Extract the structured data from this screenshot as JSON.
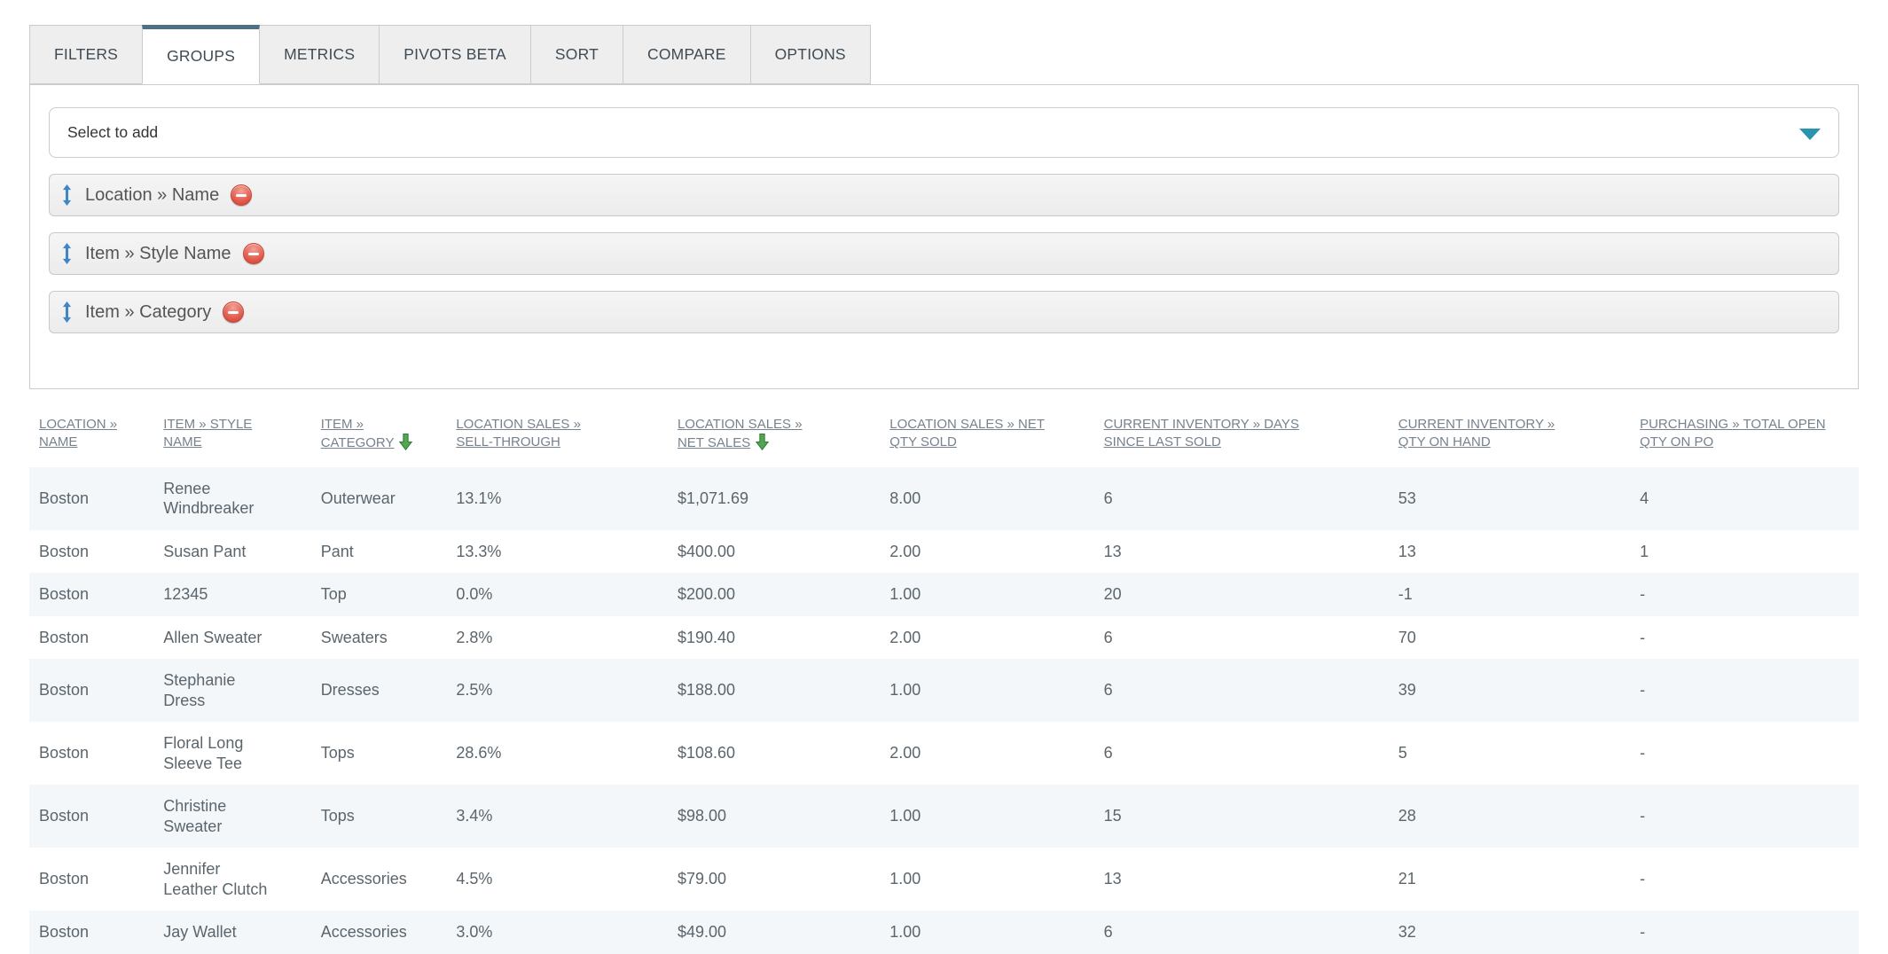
{
  "tabs": {
    "items": [
      {
        "label": "FILTERS",
        "active": false
      },
      {
        "label": "GROUPS",
        "active": true
      },
      {
        "label": "METRICS",
        "active": false
      },
      {
        "label": "PIVOTS BETA",
        "active": false
      },
      {
        "label": "SORT",
        "active": false
      },
      {
        "label": "COMPARE",
        "active": false
      },
      {
        "label": "OPTIONS",
        "active": false
      }
    ]
  },
  "groups_panel": {
    "select_placeholder": "Select to add",
    "groups": [
      {
        "label": "Location » Name"
      },
      {
        "label": "Item » Style Name"
      },
      {
        "label": "Item » Category"
      }
    ]
  },
  "table": {
    "columns": [
      {
        "label": "LOCATION » NAME",
        "lines": [
          "LOCATION »",
          "NAME"
        ],
        "sorted": false
      },
      {
        "label": "ITEM » STYLE NAME",
        "lines": [
          "ITEM » STYLE",
          "NAME"
        ],
        "sorted": false
      },
      {
        "label": "ITEM » CATEGORY",
        "lines": [
          "ITEM »",
          "CATEGORY"
        ],
        "sorted": true
      },
      {
        "label": "LOCATION SALES » SELL-THROUGH",
        "lines": [
          "LOCATION SALES »",
          "SELL-THROUGH"
        ],
        "sorted": false
      },
      {
        "label": "LOCATION SALES » NET SALES",
        "lines": [
          "LOCATION SALES »",
          "NET SALES"
        ],
        "sorted": true
      },
      {
        "label": "LOCATION SALES » NET QTY SOLD",
        "lines": [
          "LOCATION SALES » NET",
          "QTY SOLD"
        ],
        "sorted": false
      },
      {
        "label": "CURRENT INVENTORY » DAYS SINCE LAST SOLD",
        "lines": [
          "CURRENT INVENTORY » DAYS",
          "SINCE LAST SOLD"
        ],
        "sorted": false
      },
      {
        "label": "CURRENT INVENTORY » QTY ON HAND",
        "lines": [
          "CURRENT INVENTORY »",
          "QTY ON HAND"
        ],
        "sorted": false
      },
      {
        "label": "PURCHASING » TOTAL OPEN QTY ON PO",
        "lines": [
          "PURCHASING » TOTAL OPEN",
          "QTY ON PO"
        ],
        "sorted": false
      }
    ],
    "rows": [
      [
        "Boston",
        "Renee Windbreaker",
        "Outerwear",
        "13.1%",
        "$1,071.69",
        "8.00",
        "6",
        "53",
        "4"
      ],
      [
        "Boston",
        "Susan Pant",
        "Pant",
        "13.3%",
        "$400.00",
        "2.00",
        "13",
        "13",
        "1"
      ],
      [
        "Boston",
        "12345",
        "Top",
        "0.0%",
        "$200.00",
        "1.00",
        "20",
        "-1",
        "-"
      ],
      [
        "Boston",
        "Allen Sweater",
        "Sweaters",
        "2.8%",
        "$190.40",
        "2.00",
        "6",
        "70",
        "-"
      ],
      [
        "Boston",
        "Stephanie Dress",
        "Dresses",
        "2.5%",
        "$188.00",
        "1.00",
        "6",
        "39",
        "-"
      ],
      [
        "Boston",
        "Floral Long Sleeve Tee",
        "Tops",
        "28.6%",
        "$108.60",
        "2.00",
        "6",
        "5",
        "-"
      ],
      [
        "Boston",
        "Christine Sweater",
        "Tops",
        "3.4%",
        "$98.00",
        "1.00",
        "15",
        "28",
        "-"
      ],
      [
        "Boston",
        "Jennifer Leather Clutch",
        "Accessories",
        "4.5%",
        "$79.00",
        "1.00",
        "13",
        "21",
        "-"
      ],
      [
        "Boston",
        "Jay Wallet",
        "Accessories",
        "3.0%",
        "$49.00",
        "1.00",
        "6",
        "32",
        "-"
      ]
    ]
  },
  "colors": {
    "active_tab_border": "#4d7086",
    "tab_bg": "#eeeeee",
    "border_gray": "#cbcbcb",
    "dropdown_caret": "#2a93ad",
    "drag_icon_blue": "#3f86c6",
    "remove_icon_red": "#e05a4d",
    "sort_arrow_green": "#55a555",
    "header_link": "#76828e",
    "cell_text": "#5b656c",
    "row_stripe": "#f3f7fa"
  }
}
